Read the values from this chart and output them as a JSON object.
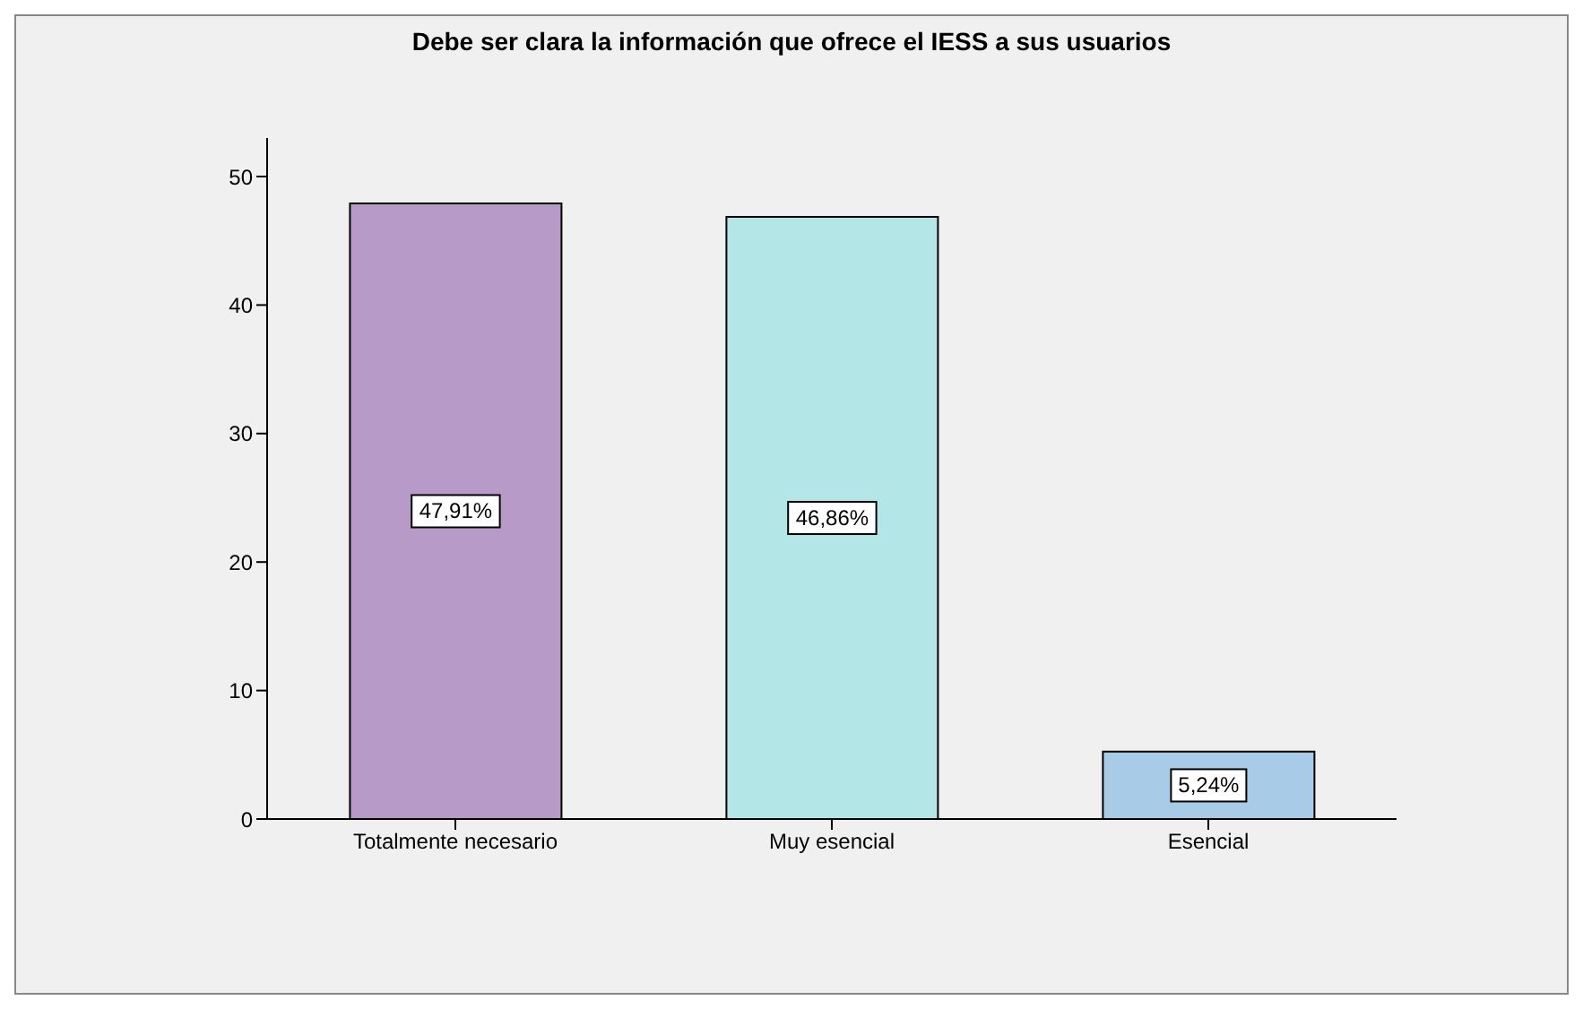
{
  "chart_data": {
    "type": "bar",
    "title": "Debe ser clara la información que ofrece el IESS a sus usuarios",
    "categories": [
      "Totalmente necesario",
      "Muy esencial",
      "Esencial"
    ],
    "values": [
      47.91,
      46.86,
      5.24
    ],
    "colors": [
      "#b89ac8",
      "#b3e6e6",
      "#a8cce8"
    ],
    "value_labels": [
      "47,91%",
      "46,86%",
      "5,24%"
    ],
    "ylim": [
      0,
      53
    ],
    "yticks": [
      0,
      10,
      20,
      30,
      40,
      50
    ],
    "grid": false
  }
}
